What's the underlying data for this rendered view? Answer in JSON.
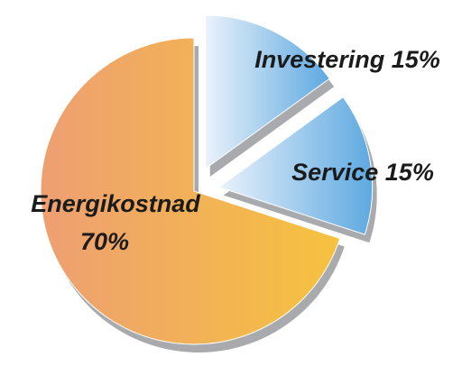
{
  "chart_data": {
    "type": "pie",
    "categories": [
      "Investering",
      "Service",
      "Energikostnad"
    ],
    "values": [
      15,
      15,
      70
    ],
    "value_labels": [
      "15%",
      "15%",
      "70%"
    ],
    "colors": [
      [
        "#eaf2fb",
        "#5da9e1"
      ],
      [
        "#eaf2fb",
        "#5da9e1"
      ],
      [
        "#ee9f72",
        "#f6c23e"
      ]
    ],
    "exploded": [
      true,
      true,
      false
    ]
  }
}
